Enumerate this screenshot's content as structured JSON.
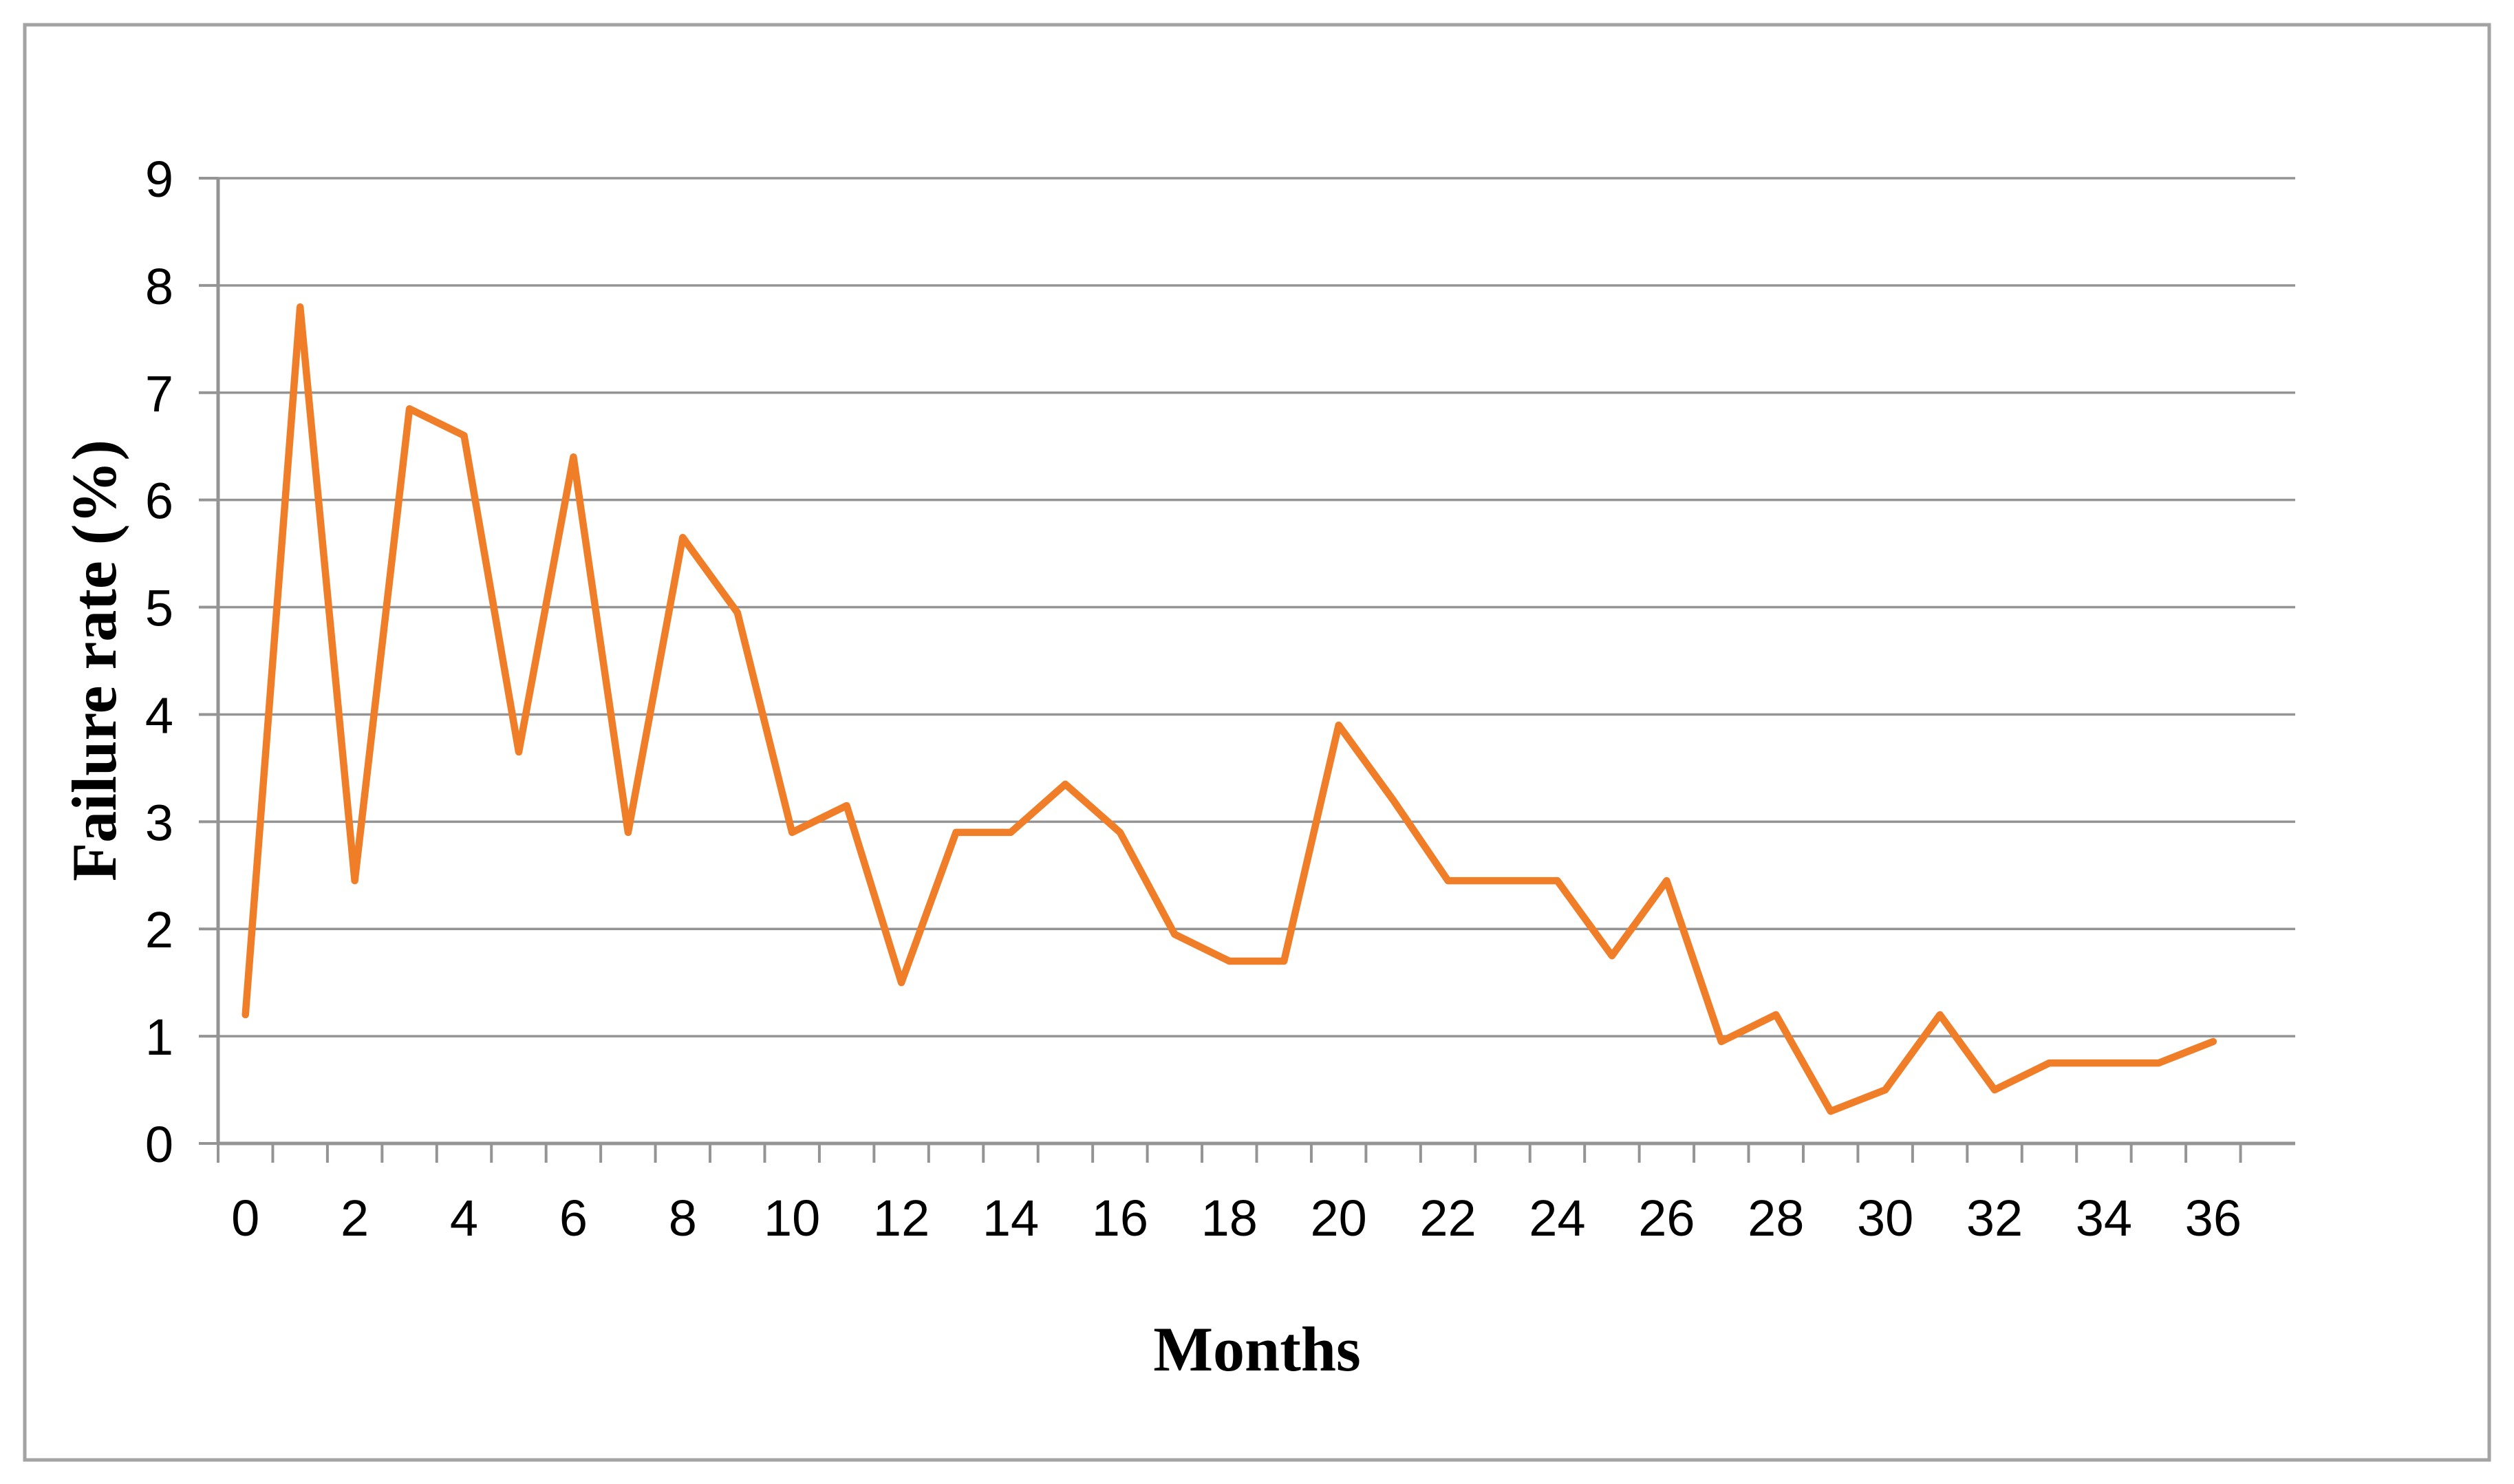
{
  "figure": {
    "background": "#FFFFFF",
    "border_color": "#A3A3A3"
  },
  "chart_data": {
    "type": "line",
    "title": "",
    "xlabel": "Months",
    "ylabel": "Failure rate (%)",
    "x": [
      0,
      1,
      2,
      3,
      4,
      5,
      6,
      7,
      8,
      9,
      10,
      11,
      12,
      13,
      14,
      15,
      16,
      17,
      18,
      19,
      20,
      21,
      22,
      23,
      24,
      25,
      26,
      27,
      28,
      29,
      30,
      31,
      32,
      33,
      34,
      35,
      36
    ],
    "values": [
      1.2,
      7.8,
      2.45,
      6.85,
      6.6,
      3.65,
      6.4,
      2.9,
      5.65,
      4.95,
      2.9,
      3.15,
      1.5,
      2.9,
      2.9,
      3.35,
      2.9,
      1.95,
      1.7,
      1.7,
      3.9,
      3.2,
      2.45,
      2.45,
      2.45,
      1.75,
      2.45,
      0.95,
      1.2,
      0.3,
      0.5,
      1.2,
      0.5,
      0.75,
      0.75,
      0.75,
      0.95
    ],
    "ylim": [
      0,
      9
    ],
    "yticklabels": [
      "0",
      "1",
      "2",
      "3",
      "4",
      "5",
      "6",
      "7",
      "8",
      "9"
    ],
    "xticklabels": [
      "0",
      "2",
      "4",
      "6",
      "8",
      "10",
      "12",
      "14",
      "16",
      "18",
      "20",
      "22",
      "24",
      "26",
      "28",
      "30",
      "32",
      "34",
      "36"
    ],
    "xtick_label_step": 2,
    "grid": "horizontal",
    "legend": "none",
    "line_color": "#F07E28",
    "grid_color": "#949494",
    "axis_color": "#949494",
    "label_color": "#000000"
  }
}
